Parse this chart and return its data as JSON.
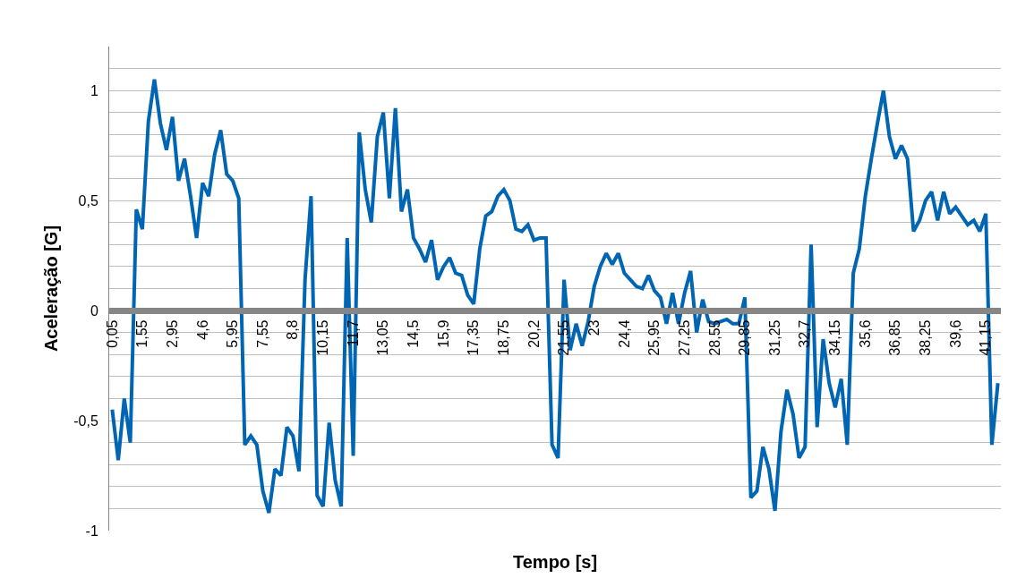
{
  "chart_data": {
    "type": "line",
    "xlabel": "Tempo [s]",
    "ylabel": "Aceleração [G]",
    "categories": [
      "0,05",
      null,
      null,
      null,
      null,
      "1,55",
      null,
      null,
      null,
      null,
      "2,95",
      null,
      null,
      null,
      null,
      "4,6",
      null,
      null,
      null,
      null,
      "5,95",
      null,
      null,
      null,
      null,
      "7,55",
      null,
      null,
      null,
      null,
      "8,8",
      null,
      null,
      null,
      null,
      "10,15",
      null,
      null,
      null,
      null,
      "11,7",
      null,
      null,
      null,
      null,
      "13,05",
      null,
      null,
      null,
      null,
      "14,5",
      null,
      null,
      null,
      null,
      "15,9",
      null,
      null,
      null,
      null,
      "17,35",
      null,
      null,
      null,
      null,
      "18,75",
      null,
      null,
      null,
      null,
      "20,2",
      null,
      null,
      null,
      null,
      "21,55",
      null,
      null,
      null,
      null,
      "23",
      null,
      null,
      null,
      null,
      "24,4",
      null,
      null,
      null,
      null,
      "25,95",
      null,
      null,
      null,
      null,
      "27,25",
      null,
      null,
      null,
      null,
      "28,55",
      null,
      null,
      null,
      null,
      "29,85",
      null,
      null,
      null,
      null,
      "31,25",
      null,
      null,
      null,
      null,
      "32,7",
      null,
      null,
      null,
      null,
      "34,15",
      null,
      null,
      null,
      null,
      "35,6",
      null,
      null,
      null,
      null,
      "36,85",
      null,
      null,
      null,
      null,
      "38,25",
      null,
      null,
      null,
      null,
      "39,6",
      null,
      null,
      null,
      null,
      "41,15",
      null,
      null
    ],
    "series": [
      {
        "color": "#0066b3",
        "values": [
          -0.45,
          -0.68,
          -0.4,
          -0.6,
          0.46,
          0.37,
          0.86,
          1.05,
          0.85,
          0.73,
          0.88,
          0.59,
          0.69,
          0.52,
          0.33,
          0.58,
          0.52,
          0.71,
          0.82,
          0.62,
          0.59,
          0.51,
          -0.61,
          -0.57,
          -0.61,
          -0.82,
          -0.92,
          -0.72,
          -0.75,
          -0.53,
          -0.57,
          -0.73,
          0.14,
          0.52,
          -0.84,
          -0.89,
          -0.51,
          -0.77,
          -0.89,
          0.33,
          -0.66,
          0.81,
          0.55,
          0.4,
          0.79,
          0.9,
          0.51,
          0.92,
          0.45,
          0.55,
          0.33,
          0.28,
          0.22,
          0.32,
          0.14,
          0.2,
          0.24,
          0.17,
          0.16,
          0.07,
          0.03,
          0.28,
          0.43,
          0.45,
          0.52,
          0.55,
          0.5,
          0.37,
          0.36,
          0.39,
          0.32,
          0.33,
          0.33,
          -0.61,
          -0.67,
          0.14,
          -0.18,
          -0.06,
          -0.16,
          -0.05,
          0.11,
          0.2,
          0.26,
          0.21,
          0.26,
          0.17,
          0.14,
          0.11,
          0.1,
          0.16,
          0.09,
          0.06,
          -0.06,
          0.08,
          -0.06,
          0.08,
          0.18,
          -0.1,
          0.05,
          -0.05,
          -0.06,
          -0.05,
          -0.04,
          -0.06,
          -0.06,
          0.06,
          -0.85,
          -0.82,
          -0.62,
          -0.72,
          -0.91,
          -0.55,
          -0.36,
          -0.47,
          -0.67,
          -0.62,
          0.3,
          -0.53,
          -0.13,
          -0.33,
          -0.44,
          -0.31,
          -0.61,
          0.17,
          0.28,
          0.52,
          0.69,
          0.85,
          1.0,
          0.79,
          0.69,
          0.75,
          0.69,
          0.36,
          0.41,
          0.5,
          0.54,
          0.41,
          0.54,
          0.44,
          0.47,
          0.43,
          0.39,
          0.41,
          0.36,
          0.44,
          -0.61,
          -0.33
        ]
      }
    ],
    "ylim": [
      -1,
      1.2
    ],
    "yticks": [
      -1,
      {
        "value": -0.9,
        "label": null
      },
      {
        "value": -0.8,
        "label": null
      },
      {
        "value": -0.7,
        "label": null
      },
      {
        "value": -0.6,
        "label": null
      },
      {
        "value": -0.5,
        "label": "-0,5"
      },
      {
        "value": -0.4,
        "label": null
      },
      {
        "value": -0.3,
        "label": null
      },
      {
        "value": -0.2,
        "label": null
      },
      {
        "value": -0.1,
        "label": null
      },
      0,
      {
        "value": 0.1,
        "label": null
      },
      {
        "value": 0.2,
        "label": null
      },
      {
        "value": 0.3,
        "label": null
      },
      {
        "value": 0.4,
        "label": null
      },
      {
        "value": 0.5,
        "label": "0,5"
      },
      {
        "value": 0.6,
        "label": null
      },
      {
        "value": 0.7,
        "label": null
      },
      {
        "value": 0.8,
        "label": null
      },
      {
        "value": 0.9,
        "label": null
      },
      1,
      {
        "value": 1.1,
        "label": null
      }
    ],
    "grid": "y",
    "marker": "none",
    "line_style": "solid"
  }
}
